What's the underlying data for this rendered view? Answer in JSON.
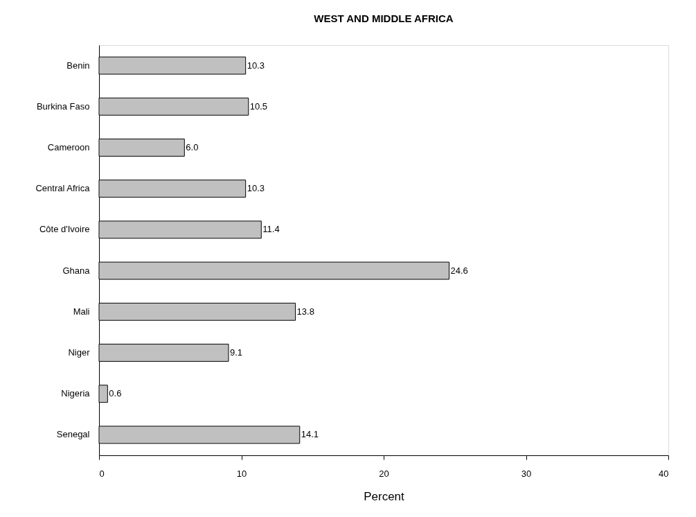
{
  "chart_data": {
    "type": "bar",
    "orientation": "horizontal",
    "title": "WEST AND MIDDLE AFRICA",
    "xlabel": "Percent",
    "categories": [
      "Benin",
      "Burkina Faso",
      "Cameroon",
      "Central Africa",
      "Côte d'Ivoire",
      "Ghana",
      "Mali",
      "Niger",
      "Nigeria",
      "Senegal"
    ],
    "values": [
      10.3,
      10.5,
      6.0,
      10.3,
      11.4,
      24.6,
      13.8,
      9.1,
      0.6,
      14.1
    ],
    "value_labels": [
      "10.3",
      "10.5",
      "6.0",
      "10.3",
      "11.4",
      "24.6",
      "13.8",
      "9.1",
      "0.6",
      "14.1"
    ],
    "color": "#c0c0c0",
    "xlim": [
      0,
      40
    ],
    "xticks": [
      0,
      10,
      20,
      30,
      40
    ],
    "grid": false
  }
}
